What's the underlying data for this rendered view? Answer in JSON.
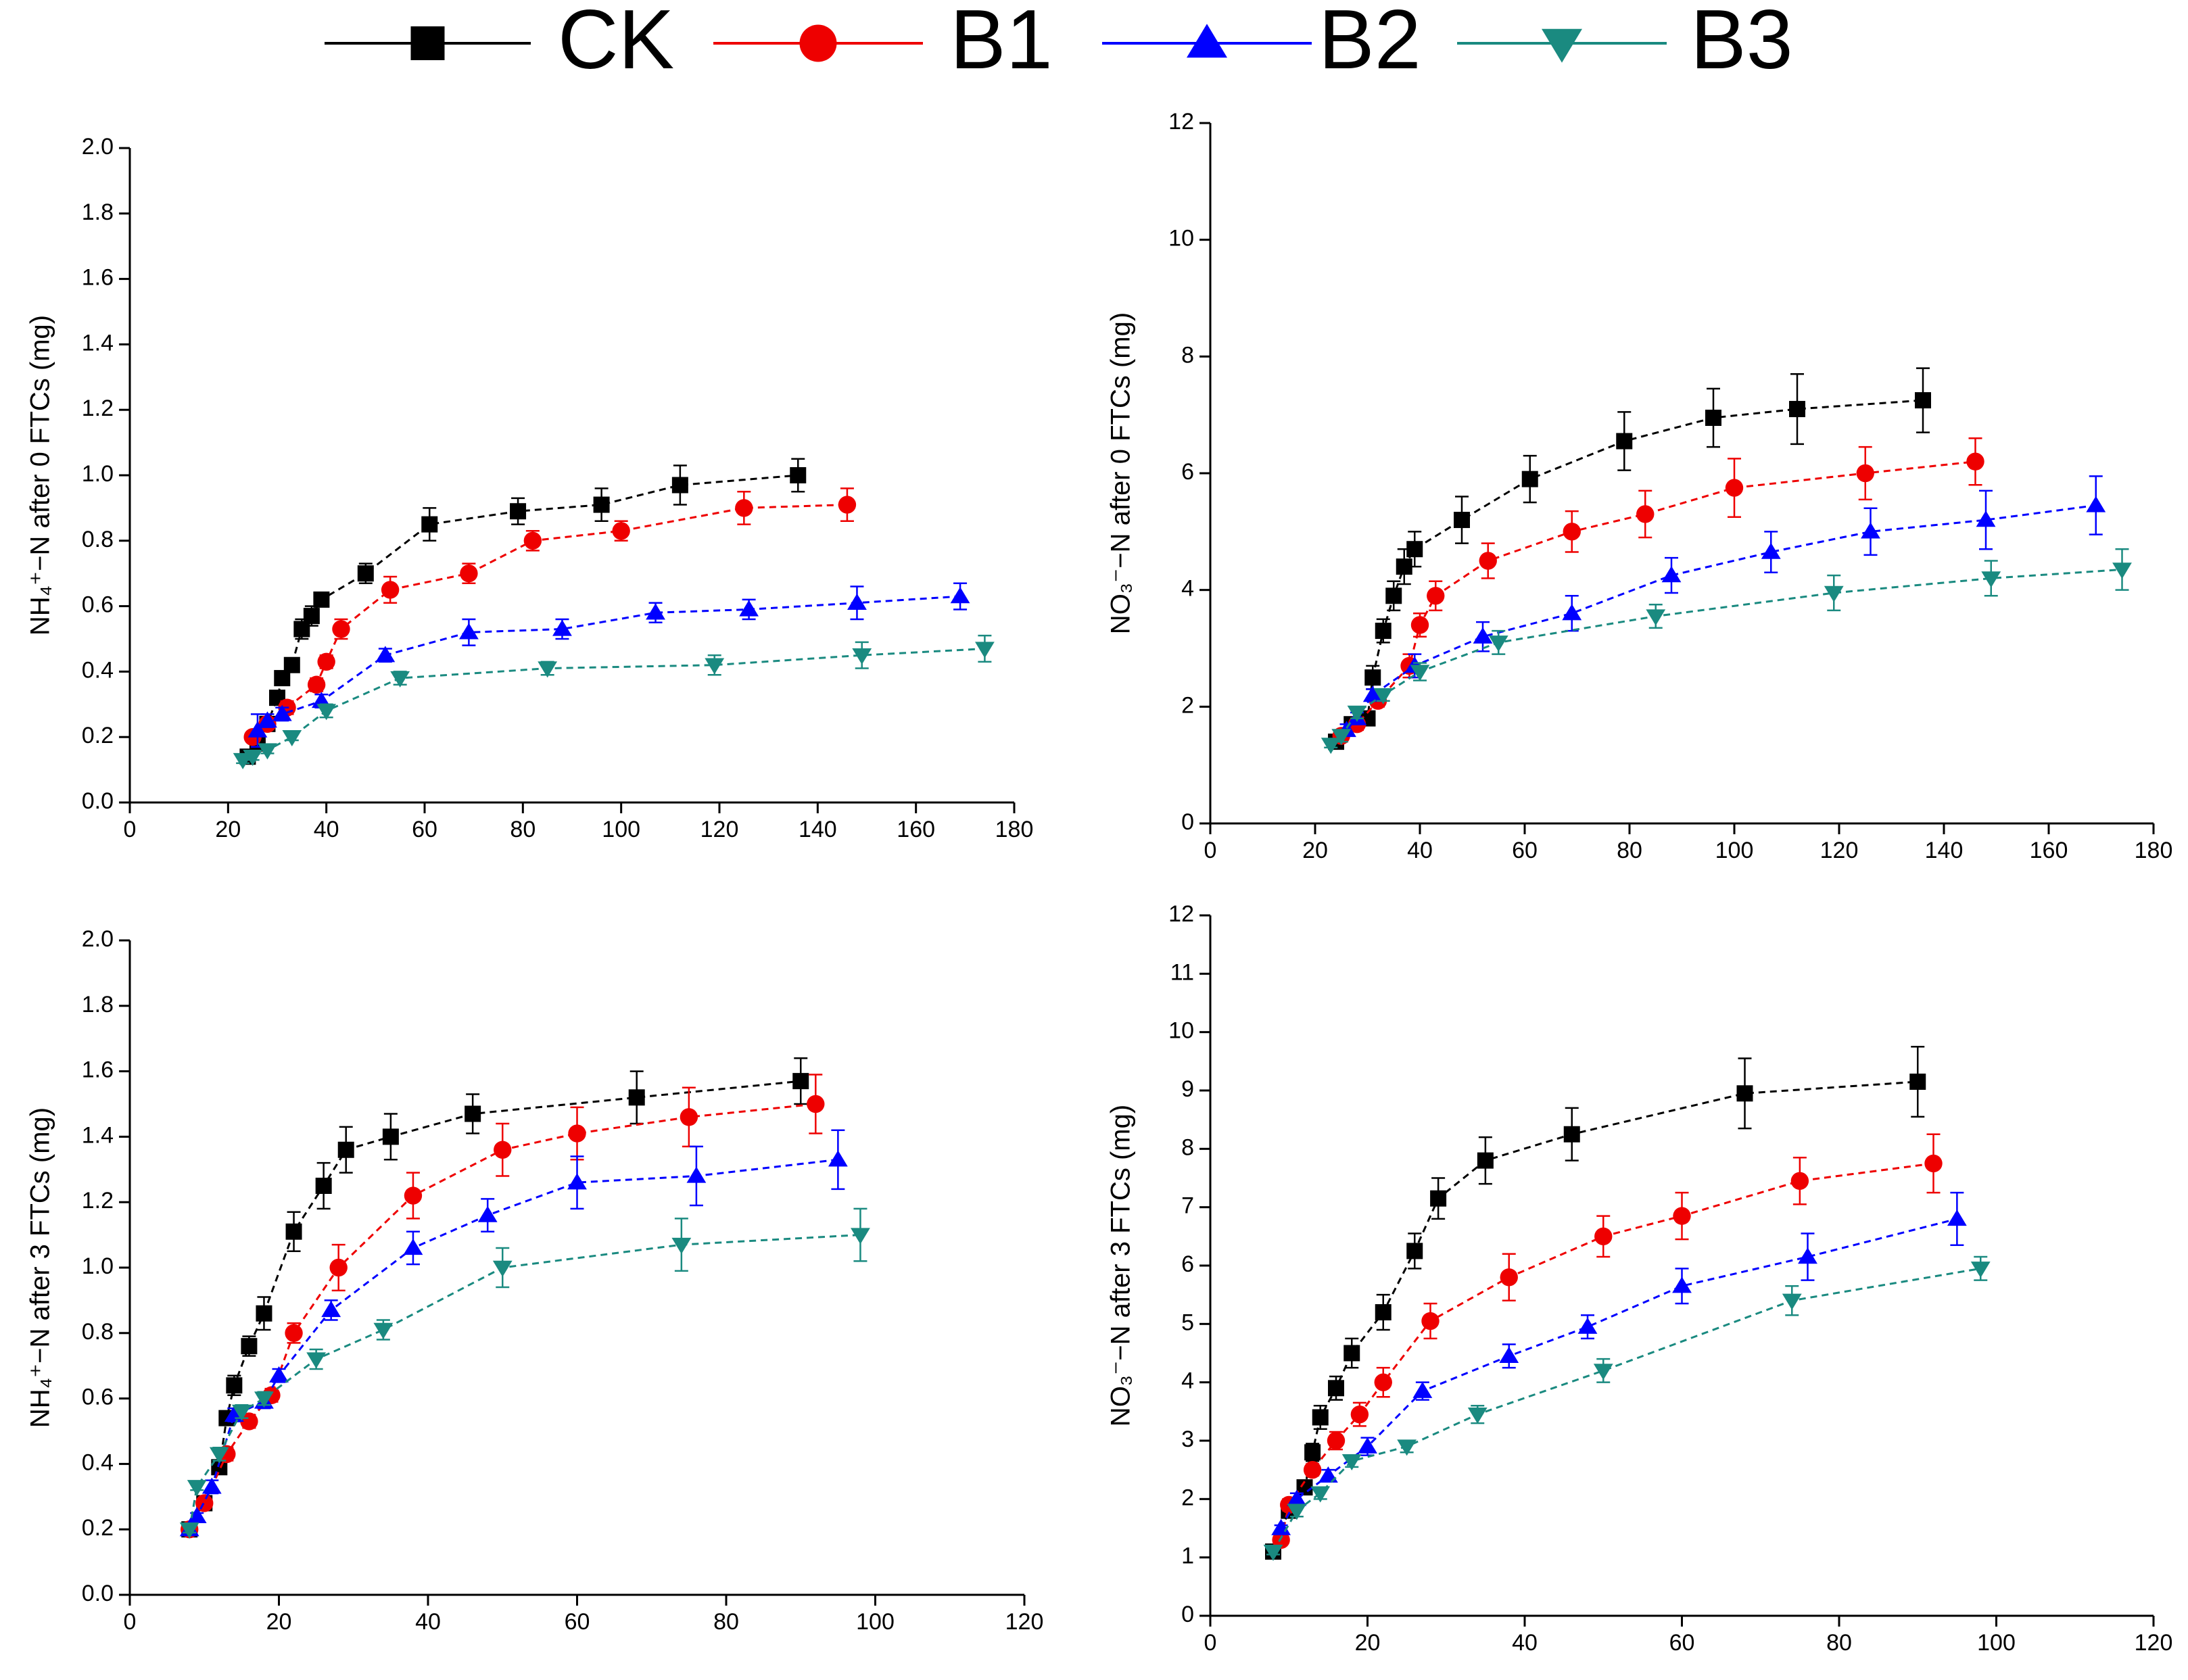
{
  "chart_data": [
    {
      "type": "line",
      "ylabel": "NH₄⁺−N after 0 FTCs (mg)",
      "xlim": [
        0,
        180
      ],
      "xticks": [
        0,
        20,
        40,
        60,
        80,
        100,
        120,
        140,
        160,
        180
      ],
      "ylim": [
        0,
        2
      ],
      "yticks": [
        {
          "value": 0,
          "label": "0.0"
        },
        0.2,
        0.4,
        0.6,
        0.8,
        {
          "value": 1,
          "label": "1.0"
        },
        1.2,
        1.4,
        1.6,
        1.8,
        {
          "value": 2,
          "label": "2.0"
        }
      ],
      "series": [
        {
          "name": "CK",
          "color": "#000000",
          "marker": "square",
          "x": [
            24,
            26,
            28,
            30,
            31,
            33,
            35,
            37,
            39,
            48,
            61,
            79,
            96,
            112,
            136
          ],
          "values": [
            0.14,
            0.18,
            0.24,
            0.32,
            0.38,
            0.42,
            0.53,
            0.57,
            0.62,
            0.7,
            0.85,
            0.89,
            0.91,
            0.97,
            1.0
          ],
          "errors": [
            0.01,
            0.01,
            0.01,
            0.02,
            0.02,
            0.02,
            0.03,
            0.03,
            0.02,
            0.03,
            0.05,
            0.04,
            0.05,
            0.06,
            0.05
          ]
        },
        {
          "name": "B1",
          "color": "#ee0000",
          "marker": "circle",
          "x": [
            25,
            28,
            32,
            38,
            40,
            43,
            53,
            69,
            82,
            100,
            125,
            146
          ],
          "values": [
            0.2,
            0.24,
            0.29,
            0.36,
            0.43,
            0.53,
            0.65,
            0.7,
            0.8,
            0.83,
            0.9,
            0.91
          ],
          "errors": [
            0.01,
            0.01,
            0.02,
            0.02,
            0.02,
            0.03,
            0.04,
            0.03,
            0.03,
            0.03,
            0.05,
            0.05
          ]
        },
        {
          "name": "B2",
          "color": "#0000ff",
          "marker": "triangle-up",
          "x": [
            26,
            28,
            31,
            39,
            52,
            69,
            88,
            107,
            126,
            148,
            169
          ],
          "values": [
            0.22,
            0.25,
            0.27,
            0.31,
            0.45,
            0.52,
            0.53,
            0.58,
            0.59,
            0.61,
            0.63
          ],
          "errors": [
            0.05,
            0.02,
            0.02,
            0.02,
            0.02,
            0.04,
            0.03,
            0.03,
            0.03,
            0.05,
            0.04
          ]
        },
        {
          "name": "B3",
          "color": "#1a8a80",
          "marker": "triangle-down",
          "x": [
            23,
            25,
            28,
            33,
            40,
            55,
            85,
            119,
            149,
            174
          ],
          "values": [
            0.13,
            0.14,
            0.16,
            0.2,
            0.28,
            0.38,
            0.41,
            0.42,
            0.45,
            0.47
          ],
          "errors": [
            0.01,
            0.01,
            0.01,
            0.01,
            0.02,
            0.02,
            0.02,
            0.03,
            0.04,
            0.04
          ]
        }
      ]
    },
    {
      "type": "line",
      "ylabel": "NO₃⁻−N after 0 FTCs (mg)",
      "xlim": [
        0,
        180
      ],
      "xticks": [
        0,
        20,
        40,
        60,
        80,
        100,
        120,
        140,
        160,
        180
      ],
      "ylim": [
        0,
        12
      ],
      "yticks": [
        0,
        2,
        4,
        6,
        8,
        10,
        12
      ],
      "series": [
        {
          "name": "CK",
          "color": "#000000",
          "marker": "square",
          "x": [
            24,
            27,
            30,
            31,
            33,
            35,
            37,
            39,
            48,
            61,
            79,
            96,
            112,
            136
          ],
          "values": [
            1.4,
            1.7,
            1.8,
            2.5,
            3.3,
            3.9,
            4.4,
            4.7,
            5.2,
            5.9,
            6.55,
            6.95,
            7.1,
            7.25
          ],
          "errors": [
            0.1,
            0.1,
            0.1,
            0.2,
            0.2,
            0.25,
            0.3,
            0.3,
            0.4,
            0.4,
            0.5,
            0.5,
            0.6,
            0.55
          ]
        },
        {
          "name": "B1",
          "color": "#ee0000",
          "marker": "circle",
          "x": [
            25,
            28,
            32,
            38,
            40,
            43,
            53,
            69,
            83,
            100,
            125,
            146
          ],
          "values": [
            1.5,
            1.7,
            2.1,
            2.7,
            3.4,
            3.9,
            4.5,
            5.0,
            5.3,
            5.75,
            6.0,
            6.2
          ],
          "errors": [
            0.1,
            0.1,
            0.1,
            0.2,
            0.2,
            0.25,
            0.3,
            0.35,
            0.4,
            0.5,
            0.45,
            0.4
          ]
        },
        {
          "name": "B2",
          "color": "#0000ff",
          "marker": "triangle-up",
          "x": [
            26,
            28,
            31,
            39,
            52,
            69,
            88,
            107,
            126,
            148,
            169
          ],
          "values": [
            1.6,
            1.8,
            2.2,
            2.7,
            3.2,
            3.6,
            4.25,
            4.65,
            5.0,
            5.2,
            5.45
          ],
          "errors": [
            0.1,
            0.1,
            0.1,
            0.2,
            0.25,
            0.3,
            0.3,
            0.35,
            0.4,
            0.5,
            0.5
          ]
        },
        {
          "name": "B3",
          "color": "#1a8a80",
          "marker": "triangle-down",
          "x": [
            23,
            25,
            28,
            33,
            40,
            55,
            85,
            119,
            149,
            174
          ],
          "values": [
            1.35,
            1.5,
            1.9,
            2.2,
            2.6,
            3.1,
            3.55,
            3.95,
            4.2,
            4.35
          ],
          "errors": [
            0.05,
            0.1,
            0.1,
            0.1,
            0.15,
            0.2,
            0.2,
            0.3,
            0.3,
            0.35
          ]
        }
      ]
    },
    {
      "type": "line",
      "ylabel": "NH₄⁺−N after 3 FTCs (mg)",
      "xlim": [
        0,
        120
      ],
      "xticks": [
        0,
        20,
        40,
        60,
        80,
        100,
        120
      ],
      "ylim": [
        0,
        2
      ],
      "yticks": [
        {
          "value": 0,
          "label": "0.0"
        },
        0.2,
        0.4,
        0.6,
        0.8,
        {
          "value": 1,
          "label": "1.0"
        },
        1.2,
        1.4,
        1.6,
        1.8,
        {
          "value": 2,
          "label": "2.0"
        }
      ],
      "series": [
        {
          "name": "CK",
          "color": "#000000",
          "marker": "square",
          "x": [
            8,
            10,
            12,
            13,
            14,
            16,
            18,
            22,
            26,
            29,
            35,
            46,
            68,
            90
          ],
          "values": [
            0.2,
            0.28,
            0.39,
            0.54,
            0.64,
            0.76,
            0.86,
            1.11,
            1.25,
            1.36,
            1.4,
            1.47,
            1.52,
            1.57
          ],
          "errors": [
            0.01,
            0.01,
            0.02,
            0.02,
            0.03,
            0.03,
            0.05,
            0.06,
            0.07,
            0.07,
            0.07,
            0.06,
            0.08,
            0.07
          ]
        },
        {
          "name": "B1",
          "color": "#ee0000",
          "marker": "circle",
          "x": [
            8,
            10,
            13,
            16,
            19,
            22,
            28,
            38,
            50,
            60,
            75,
            92
          ],
          "values": [
            0.2,
            0.28,
            0.43,
            0.53,
            0.61,
            0.8,
            1.0,
            1.22,
            1.36,
            1.41,
            1.46,
            1.5
          ],
          "errors": [
            0.01,
            0.01,
            0.02,
            0.02,
            0.02,
            0.03,
            0.07,
            0.07,
            0.08,
            0.08,
            0.09,
            0.09
          ]
        },
        {
          "name": "B2",
          "color": "#0000ff",
          "marker": "triangle-up",
          "x": [
            8,
            9,
            11,
            14,
            18,
            20,
            27,
            38,
            48,
            60,
            76,
            95
          ],
          "values": [
            0.2,
            0.24,
            0.33,
            0.55,
            0.59,
            0.67,
            0.87,
            1.06,
            1.16,
            1.26,
            1.28,
            1.33
          ],
          "errors": [
            0.01,
            0.01,
            0.02,
            0.02,
            0.02,
            0.02,
            0.03,
            0.05,
            0.05,
            0.08,
            0.09,
            0.09
          ]
        },
        {
          "name": "B3",
          "color": "#1a8a80",
          "marker": "triangle-down",
          "x": [
            8,
            9,
            12,
            15,
            18,
            25,
            34,
            50,
            74,
            98
          ],
          "values": [
            0.2,
            0.33,
            0.43,
            0.56,
            0.6,
            0.72,
            0.81,
            1.0,
            1.07,
            1.1
          ],
          "errors": [
            0.01,
            0.01,
            0.02,
            0.02,
            0.02,
            0.03,
            0.03,
            0.06,
            0.08,
            0.08
          ]
        }
      ]
    },
    {
      "type": "line",
      "ylabel": "NO₃⁻−N after 3 FTCs (mg)",
      "xlim": [
        0,
        120
      ],
      "xticks": [
        0,
        20,
        40,
        60,
        80,
        100,
        120
      ],
      "ylim": [
        0,
        12
      ],
      "yticks": [
        0,
        1,
        2,
        3,
        4,
        5,
        6,
        7,
        8,
        9,
        10,
        11,
        12
      ],
      "series": [
        {
          "name": "CK",
          "color": "#000000",
          "marker": "square",
          "x": [
            8,
            10,
            12,
            13,
            14,
            16,
            18,
            22,
            26,
            29,
            35,
            46,
            68,
            90
          ],
          "values": [
            1.1,
            1.8,
            2.2,
            2.8,
            3.4,
            3.9,
            4.5,
            5.2,
            6.25,
            7.15,
            7.8,
            8.25,
            8.95,
            9.15
          ],
          "errors": [
            0.05,
            0.1,
            0.1,
            0.15,
            0.2,
            0.2,
            0.25,
            0.3,
            0.3,
            0.35,
            0.4,
            0.45,
            0.6,
            0.6
          ]
        },
        {
          "name": "B1",
          "color": "#ee0000",
          "marker": "circle",
          "x": [
            9,
            10,
            13,
            16,
            19,
            22,
            28,
            38,
            50,
            60,
            75,
            92
          ],
          "values": [
            1.3,
            1.9,
            2.5,
            3.0,
            3.45,
            4.0,
            5.05,
            5.8,
            6.5,
            6.85,
            7.45,
            7.75
          ],
          "errors": [
            0.05,
            0.1,
            0.1,
            0.15,
            0.2,
            0.25,
            0.3,
            0.4,
            0.35,
            0.4,
            0.4,
            0.5
          ]
        },
        {
          "name": "B2",
          "color": "#0000ff",
          "marker": "triangle-up",
          "x": [
            9,
            11,
            15,
            20,
            27,
            38,
            48,
            60,
            76,
            95
          ],
          "values": [
            1.5,
            2.0,
            2.4,
            2.9,
            3.85,
            4.45,
            4.95,
            5.65,
            6.15,
            6.8
          ],
          "errors": [
            0.05,
            0.1,
            0.1,
            0.15,
            0.15,
            0.2,
            0.2,
            0.3,
            0.4,
            0.45
          ]
        },
        {
          "name": "B3",
          "color": "#1a8a80",
          "marker": "triangle-down",
          "x": [
            8,
            11,
            14,
            18,
            25,
            34,
            50,
            74,
            98
          ],
          "values": [
            1.1,
            1.8,
            2.1,
            2.65,
            2.9,
            3.45,
            4.2,
            5.4,
            5.95
          ],
          "errors": [
            0.05,
            0.1,
            0.1,
            0.1,
            0.1,
            0.15,
            0.2,
            0.25,
            0.2
          ]
        }
      ]
    }
  ]
}
